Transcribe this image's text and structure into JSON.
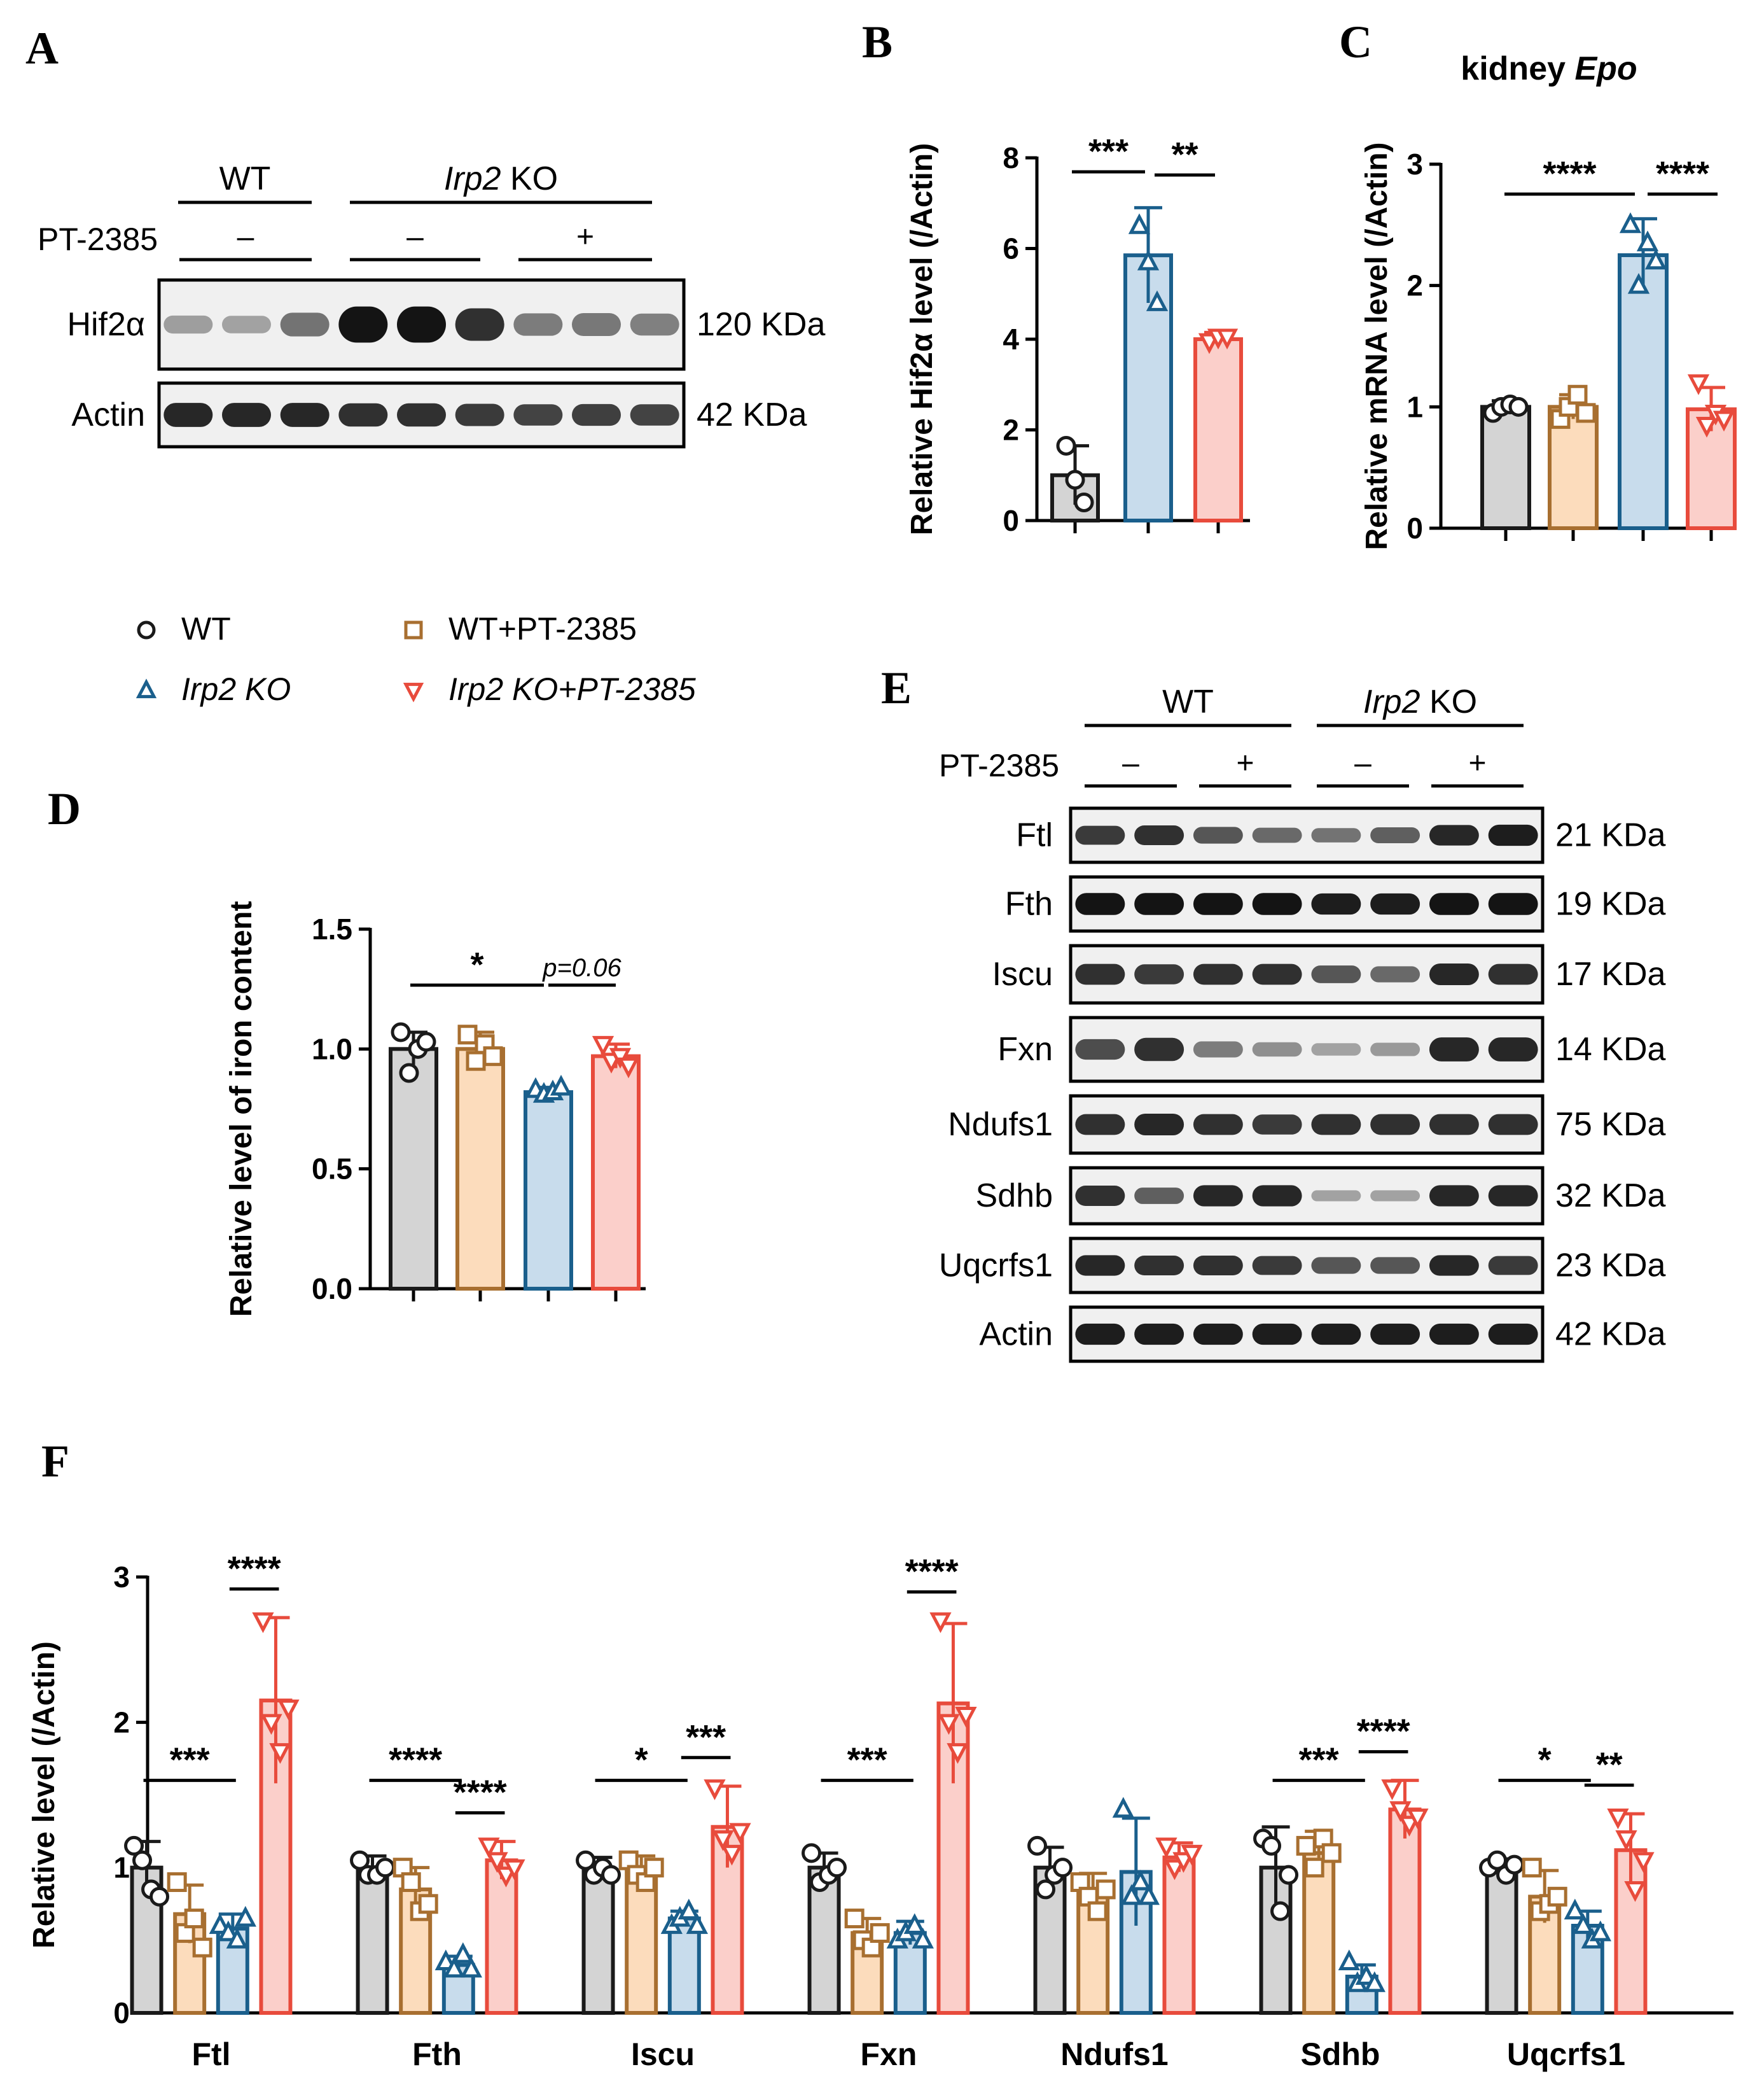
{
  "colors": {
    "WT": {
      "fill": "#d4d4d4",
      "stroke": "#1a1a1a"
    },
    "WT_PT": {
      "fill": "#fcdcbc",
      "stroke": "#a86f30"
    },
    "KO": {
      "fill": "#c8dcec",
      "stroke": "#1a5f8c"
    },
    "KO_PT": {
      "fill": "#fbcfca",
      "stroke": "#e84b3c"
    }
  },
  "panel_labels": [
    "A",
    "B",
    "C",
    "D",
    "E",
    "F"
  ],
  "legend": [
    {
      "key": "WT",
      "label": "WT",
      "marker": "circle",
      "italic": false
    },
    {
      "key": "WT_PT",
      "label": "WT+PT-2385",
      "marker": "square",
      "italic": false
    },
    {
      "key": "KO",
      "label": "Irp2 KO",
      "marker": "triangle-up",
      "italic": true
    },
    {
      "key": "KO_PT",
      "label": "Irp2 KO+PT-2385",
      "marker": "triangle-down",
      "italic": true
    }
  ],
  "blot_a": {
    "groups": [
      {
        "label": "WT",
        "italic_part": ""
      },
      {
        "label": " KO",
        "italic_part": "Irp2"
      }
    ],
    "treatment_label": "PT-2385",
    "treatment_marks": [
      "–",
      "–",
      "+"
    ],
    "rows": [
      {
        "name": "Hif2α",
        "size": "120 KDa",
        "intensity": [
          0.22,
          0.2,
          0.45,
          0.95,
          0.95,
          0.8,
          0.4,
          0.42,
          0.38
        ]
      },
      {
        "name": "Actin",
        "size": "42 KDa",
        "intensity": [
          0.85,
          0.85,
          0.85,
          0.8,
          0.8,
          0.75,
          0.7,
          0.72,
          0.7
        ]
      }
    ]
  },
  "blot_e": {
    "groups": [
      {
        "label": "WT",
        "italic_part": ""
      },
      {
        "label": " KO",
        "italic_part": "Irp2"
      }
    ],
    "treatment_label": "PT-2385",
    "treatment_marks": [
      "–",
      "+",
      "–",
      "+"
    ],
    "rows": [
      {
        "name": "Ftl",
        "size": "21 KDa",
        "intensity": [
          0.75,
          0.8,
          0.6,
          0.5,
          0.45,
          0.55,
          0.85,
          0.9
        ]
      },
      {
        "name": "Fth",
        "size": "19 KDa",
        "intensity": [
          0.95,
          0.95,
          0.95,
          0.95,
          0.9,
          0.9,
          0.95,
          0.95
        ]
      },
      {
        "name": "Iscu",
        "size": "17 KDa",
        "intensity": [
          0.8,
          0.75,
          0.8,
          0.8,
          0.6,
          0.5,
          0.85,
          0.8
        ]
      },
      {
        "name": "Fxn",
        "size": "14 KDa",
        "intensity": [
          0.65,
          0.8,
          0.4,
          0.3,
          0.2,
          0.25,
          0.85,
          0.85
        ]
      },
      {
        "name": "Ndufs1",
        "size": "75 KDa",
        "intensity": [
          0.8,
          0.85,
          0.8,
          0.75,
          0.8,
          0.8,
          0.8,
          0.8
        ]
      },
      {
        "name": "Sdhb",
        "size": "32 KDa",
        "intensity": [
          0.8,
          0.55,
          0.85,
          0.85,
          0.2,
          0.2,
          0.85,
          0.85
        ]
      },
      {
        "name": "Uqcrfs1",
        "size": "23 KDa",
        "intensity": [
          0.85,
          0.8,
          0.8,
          0.75,
          0.6,
          0.6,
          0.85,
          0.75
        ]
      },
      {
        "name": "Actin",
        "size": "42 KDa",
        "intensity": [
          0.9,
          0.9,
          0.9,
          0.9,
          0.9,
          0.9,
          0.9,
          0.9
        ]
      }
    ]
  },
  "chart_data": [
    {
      "id": "B",
      "type": "bar",
      "title": "",
      "ylabel": "Relative Hif2α level (/Actin)",
      "ylim": [
        0,
        8
      ],
      "yticks": [
        0,
        2,
        4,
        6,
        8
      ],
      "groups": [
        "WT",
        "KO",
        "KO_PT"
      ],
      "values": [
        1.0,
        5.85,
        4.0
      ],
      "errors": [
        0.65,
        1.05,
        0.15
      ],
      "points": [
        [
          1.65,
          0.9,
          0.4
        ],
        [
          6.5,
          5.7,
          4.8
        ],
        [
          3.95,
          4.05,
          4.05
        ]
      ],
      "significance": [
        {
          "from": 0,
          "to": 1,
          "label": "***"
        },
        {
          "from": 1,
          "to": 2,
          "label": "**"
        }
      ]
    },
    {
      "id": "C",
      "type": "bar",
      "title": "kidney",
      "title_italic": "Epo",
      "ylabel": "Relative mRNA level (/Actin)",
      "ylim": [
        0,
        3
      ],
      "yticks": [
        0,
        1,
        2,
        3
      ],
      "groups": [
        "WT",
        "WT_PT",
        "KO",
        "KO_PT"
      ],
      "values": [
        1.0,
        1.0,
        2.25,
        0.98
      ],
      "errors": [
        0.05,
        0.1,
        0.3,
        0.18
      ],
      "points": [
        [
          0.95,
          1.0,
          1.02,
          1.0
        ],
        [
          0.9,
          1.0,
          1.1,
          0.95
        ],
        [
          2.5,
          2.0,
          2.35,
          2.2
        ],
        [
          1.2,
          0.85,
          0.95,
          0.9
        ]
      ],
      "significance": [
        {
          "from": 0,
          "to": 2,
          "label": "****"
        },
        {
          "from": 2,
          "to": 3,
          "label": "****"
        }
      ]
    },
    {
      "id": "D",
      "type": "bar",
      "title": "",
      "ylabel": "Relative level of iron content",
      "ylim": [
        0,
        1.5
      ],
      "yticks": [
        "0.0",
        "0.5",
        "1.0",
        "1.5"
      ],
      "groups": [
        "WT",
        "WT_PT",
        "KO",
        "KO_PT"
      ],
      "values": [
        1.0,
        1.0,
        0.82,
        0.97
      ],
      "errors": [
        0.07,
        0.07,
        0.02,
        0.05
      ],
      "points": [
        [
          1.07,
          0.9,
          1.0,
          1.03
        ],
        [
          1.06,
          0.95,
          1.02,
          0.97
        ],
        [
          0.83,
          0.81,
          0.82,
          0.84
        ],
        [
          1.02,
          0.95,
          0.97,
          0.93
        ]
      ],
      "significance": [
        {
          "from": 0,
          "to": 2,
          "label": "*",
          "italic": false
        },
        {
          "from": 2,
          "to": 3,
          "label": "p=0.06",
          "italic": true
        }
      ]
    },
    {
      "id": "F",
      "type": "bar",
      "ylabel": "Relative level (/Actin)",
      "ylim": [
        0,
        3
      ],
      "yticks": [
        0,
        1,
        2,
        3
      ],
      "categories": [
        "Ftl",
        "Fth",
        "Iscu",
        "Fxn",
        "Ndufs1",
        "Sdhb",
        "Uqcrfs1"
      ],
      "series": [
        {
          "name": "WT",
          "values": [
            1.0,
            1.0,
            1.0,
            1.0,
            1.0,
            1.0,
            1.0
          ],
          "errors": [
            0.18,
            0.08,
            0.07,
            0.1,
            0.14,
            0.28,
            0.06
          ],
          "points": [
            [
              1.15,
              1.05,
              0.85,
              0.8
            ],
            [
              1.05,
              0.95,
              0.95,
              1.0
            ],
            [
              1.05,
              0.95,
              1.0,
              0.95
            ],
            [
              1.1,
              0.9,
              0.95,
              1.0
            ],
            [
              1.15,
              0.85,
              0.95,
              1.0
            ],
            [
              1.2,
              1.15,
              0.7,
              0.95
            ],
            [
              1.0,
              1.05,
              0.95,
              1.02
            ]
          ]
        },
        {
          "name": "WT_PT",
          "values": [
            0.68,
            0.85,
            0.98,
            0.55,
            0.82,
            1.1,
            0.8
          ],
          "errors": [
            0.2,
            0.15,
            0.1,
            0.1,
            0.14,
            0.15,
            0.18
          ],
          "points": [
            [
              0.9,
              0.55,
              0.65,
              0.45
            ],
            [
              1.0,
              0.9,
              0.7,
              0.75
            ],
            [
              1.05,
              0.95,
              0.9,
              1.0
            ],
            [
              0.65,
              0.5,
              0.45,
              0.55
            ],
            [
              0.9,
              0.8,
              0.7,
              0.85
            ],
            [
              1.15,
              1.0,
              1.2,
              1.1
            ],
            [
              1.0,
              0.7,
              0.75,
              0.8
            ]
          ]
        },
        {
          "name": "KO",
          "values": [
            0.58,
            0.33,
            0.65,
            0.55,
            0.97,
            0.25,
            0.6
          ],
          "errors": [
            0.1,
            0.06,
            0.05,
            0.08,
            0.37,
            0.08,
            0.1
          ],
          "points": [
            [
              0.6,
              0.55,
              0.5,
              0.65
            ],
            [
              0.35,
              0.3,
              0.4,
              0.3
            ],
            [
              0.6,
              0.65,
              0.7,
              0.6
            ],
            [
              0.5,
              0.55,
              0.6,
              0.5
            ],
            [
              1.4,
              0.8,
              0.9,
              0.8
            ],
            [
              0.35,
              0.2,
              0.25,
              0.2
            ],
            [
              0.7,
              0.6,
              0.5,
              0.55
            ]
          ]
        },
        {
          "name": "KO_PT",
          "values": [
            2.15,
            1.05,
            1.28,
            2.13,
            1.07,
            1.4,
            1.12
          ],
          "errors": [
            0.57,
            0.13,
            0.28,
            0.55,
            0.1,
            0.2,
            0.25
          ],
          "points": [
            [
              2.7,
              2.0,
              1.8,
              2.1
            ],
            [
              1.15,
              1.05,
              0.95,
              1.0
            ],
            [
              1.55,
              1.2,
              1.1,
              1.25
            ],
            [
              2.7,
              2.0,
              1.8,
              2.05
            ],
            [
              1.15,
              1.0,
              1.05,
              1.1
            ],
            [
              1.55,
              1.4,
              1.3,
              1.35
            ],
            [
              1.35,
              1.2,
              0.85,
              1.05
            ]
          ]
        }
      ],
      "significance": [
        {
          "category": 0,
          "from": 0,
          "to": 2,
          "label": "***"
        },
        {
          "category": 0,
          "from": 2,
          "to": 3,
          "label": "****"
        },
        {
          "category": 1,
          "from": 0,
          "to": 2,
          "label": "****"
        },
        {
          "category": 1,
          "from": 2,
          "to": 3,
          "label": "****"
        },
        {
          "category": 2,
          "from": 0,
          "to": 2,
          "label": "*"
        },
        {
          "category": 2,
          "from": 2,
          "to": 3,
          "label": "***"
        },
        {
          "category": 3,
          "from": 0,
          "to": 2,
          "label": "***"
        },
        {
          "category": 3,
          "from": 2,
          "to": 3,
          "label": "****"
        },
        {
          "category": 5,
          "from": 0,
          "to": 2,
          "label": "***"
        },
        {
          "category": 5,
          "from": 2,
          "to": 3,
          "label": "****"
        },
        {
          "category": 6,
          "from": 0,
          "to": 2,
          "label": "*"
        },
        {
          "category": 6,
          "from": 2,
          "to": 3,
          "label": "**"
        }
      ]
    }
  ]
}
